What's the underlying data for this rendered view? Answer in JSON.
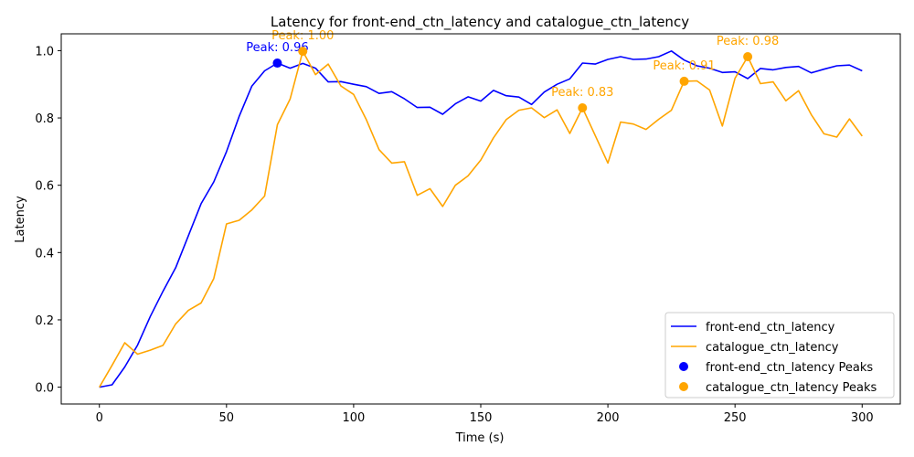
{
  "chart_data": {
    "type": "line",
    "title": "Latency for front-end_ctn_latency and catalogue_ctn_latency",
    "xlabel": "Time (s)",
    "ylabel": "Latency",
    "xlim": [
      -15,
      315
    ],
    "ylim": [
      -0.05,
      1.05
    ],
    "x_ticks": [
      0,
      50,
      100,
      150,
      200,
      250,
      300
    ],
    "y_ticks": [
      0.0,
      0.2,
      0.4,
      0.6,
      0.8,
      1.0
    ],
    "x_tick_labels": [
      "0",
      "50",
      "100",
      "150",
      "200",
      "250",
      "300"
    ],
    "y_tick_labels": [
      "0.0",
      "0.2",
      "0.4",
      "0.6",
      "0.8",
      "1.0"
    ],
    "grid": false,
    "legend_position": "bottom-right",
    "x": [
      0,
      5,
      10,
      15,
      20,
      25,
      30,
      35,
      40,
      45,
      50,
      55,
      60,
      65,
      70,
      75,
      80,
      85,
      90,
      95,
      100,
      105,
      110,
      115,
      120,
      125,
      130,
      135,
      140,
      145,
      150,
      155,
      160,
      165,
      170,
      175,
      180,
      185,
      190,
      195,
      200,
      205,
      210,
      215,
      220,
      225,
      230,
      235,
      240,
      245,
      250,
      255,
      260,
      265,
      270,
      275,
      280,
      285,
      290,
      295,
      300
    ],
    "series": [
      {
        "name": "front-end_ctn_latency",
        "color": "#0000ff",
        "values": [
          0.0,
          0.007,
          0.06,
          0.125,
          0.21,
          0.285,
          0.355,
          0.45,
          0.545,
          0.61,
          0.7,
          0.805,
          0.895,
          0.94,
          0.963,
          0.948,
          0.962,
          0.948,
          0.907,
          0.908,
          0.9,
          0.893,
          0.873,
          0.878,
          0.857,
          0.831,
          0.832,
          0.811,
          0.842,
          0.863,
          0.85,
          0.882,
          0.866,
          0.862,
          0.84,
          0.877,
          0.9,
          0.916,
          0.963,
          0.96,
          0.974,
          0.982,
          0.974,
          0.975,
          0.982,
          0.999,
          0.972,
          0.955,
          0.948,
          0.935,
          0.937,
          0.917,
          0.947,
          0.943,
          0.95,
          0.953,
          0.934,
          0.945,
          0.955,
          0.957,
          0.94
        ]
      },
      {
        "name": "catalogue_ctn_latency",
        "color": "#ffa500",
        "values": [
          0.0,
          0.065,
          0.132,
          0.098,
          0.11,
          0.124,
          0.188,
          0.228,
          0.25,
          0.323,
          0.485,
          0.496,
          0.527,
          0.568,
          0.78,
          0.856,
          0.998,
          0.929,
          0.96,
          0.895,
          0.87,
          0.795,
          0.706,
          0.666,
          0.67,
          0.57,
          0.59,
          0.537,
          0.6,
          0.628,
          0.675,
          0.741,
          0.795,
          0.823,
          0.83,
          0.801,
          0.824,
          0.754,
          0.83,
          0.748,
          0.666,
          0.788,
          0.782,
          0.766,
          0.796,
          0.823,
          0.909,
          0.91,
          0.883,
          0.776,
          0.918,
          0.982,
          0.902,
          0.907,
          0.851,
          0.881,
          0.81,
          0.753,
          0.743,
          0.797,
          0.746
        ]
      }
    ],
    "peaks": [
      {
        "series": "front-end_ctn_latency",
        "color": "#0000ff",
        "points": [
          {
            "x": 70,
            "y": 0.963,
            "label": "Peak: 0.96"
          }
        ]
      },
      {
        "series": "catalogue_ctn_latency",
        "color": "#ffa500",
        "points": [
          {
            "x": 80,
            "y": 0.998,
            "label": "Peak: 1.00"
          },
          {
            "x": 190,
            "y": 0.83,
            "label": "Peak: 0.83"
          },
          {
            "x": 230,
            "y": 0.909,
            "label": "Peak: 0.91"
          },
          {
            "x": 255,
            "y": 0.982,
            "label": "Peak: 0.98"
          }
        ]
      }
    ],
    "legend": [
      {
        "label": "front-end_ctn_latency",
        "kind": "line",
        "color": "#0000ff"
      },
      {
        "label": "catalogue_ctn_latency",
        "kind": "line",
        "color": "#ffa500"
      },
      {
        "label": "front-end_ctn_latency Peaks",
        "kind": "marker",
        "color": "#0000ff"
      },
      {
        "label": "catalogue_ctn_latency Peaks",
        "kind": "marker",
        "color": "#ffa500"
      }
    ]
  }
}
